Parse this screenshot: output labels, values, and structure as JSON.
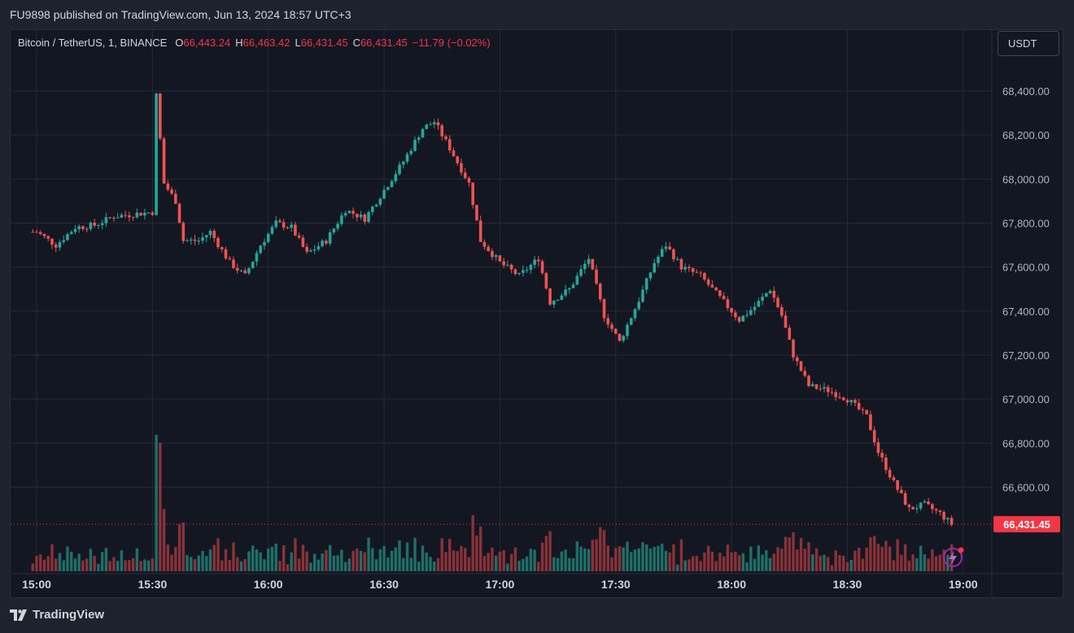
{
  "header": {
    "publish_info": "FU9898 published on TradingView.com, Jun 13, 2024 18:57 UTC+3"
  },
  "legend": {
    "symbol": "Bitcoin / TetherUS, 1, BINANCE",
    "o_label": "O",
    "o_value": "66,443.24",
    "h_label": "H",
    "h_value": "66,463.42",
    "l_label": "L",
    "l_value": "66,431.45",
    "c_label": "C",
    "c_value": "66,431.45",
    "change": "−11.79 (−0.02%)"
  },
  "currency_button": "USDT",
  "last_price_label": "66,431.45",
  "footer": {
    "brand": "TradingView"
  },
  "colors": {
    "up": "#26a69a",
    "down": "#ef5350",
    "up_volume": "#1f6f68",
    "down_volume": "#8a3238",
    "grid": "#262a35",
    "background": "#131722"
  },
  "icons": {
    "replay": "lightning-icon"
  },
  "chart_data": {
    "type": "candlestick",
    "title": "",
    "xlabel": "",
    "ylabel": "",
    "x_ticks": [
      "15:00",
      "15:30",
      "16:00",
      "16:30",
      "17:00",
      "17:30",
      "18:00",
      "18:30",
      "19:00"
    ],
    "y_ticks": [
      "66,600.00",
      "66,800.00",
      "67,000.00",
      "67,200.00",
      "67,400.00",
      "67,600.00",
      "67,800.00",
      "68,000.00",
      "68,200.00",
      "68,400.00"
    ],
    "ylim": [
      66360,
      68680
    ],
    "time_range": [
      "14:59",
      "18:57"
    ],
    "price_path_approx": [
      [
        "15:00",
        67760
      ],
      [
        "15:05",
        67700
      ],
      [
        "15:10",
        67780
      ],
      [
        "15:15",
        67790
      ],
      [
        "15:20",
        67830
      ],
      [
        "15:25",
        67840
      ],
      [
        "15:30",
        67850
      ],
      [
        "15:31",
        68380
      ],
      [
        "15:33",
        67980
      ],
      [
        "15:36",
        67900
      ],
      [
        "15:38",
        67720
      ],
      [
        "15:42",
        67720
      ],
      [
        "15:45",
        67760
      ],
      [
        "15:50",
        67620
      ],
      [
        "15:54",
        67560
      ],
      [
        "15:58",
        67700
      ],
      [
        "16:02",
        67800
      ],
      [
        "16:06",
        67780
      ],
      [
        "16:10",
        67660
      ],
      [
        "16:15",
        67720
      ],
      [
        "16:20",
        67860
      ],
      [
        "16:25",
        67820
      ],
      [
        "16:30",
        67950
      ],
      [
        "16:35",
        68080
      ],
      [
        "16:40",
        68230
      ],
      [
        "16:43",
        68260
      ],
      [
        "16:47",
        68140
      ],
      [
        "16:52",
        67980
      ],
      [
        "16:55",
        67720
      ],
      [
        "17:00",
        67620
      ],
      [
        "17:05",
        67560
      ],
      [
        "17:10",
        67640
      ],
      [
        "17:13",
        67440
      ],
      [
        "17:18",
        67500
      ],
      [
        "17:23",
        67640
      ],
      [
        "17:27",
        67380
      ],
      [
        "17:31",
        67260
      ],
      [
        "17:36",
        67450
      ],
      [
        "17:40",
        67620
      ],
      [
        "17:43",
        67700
      ],
      [
        "17:47",
        67600
      ],
      [
        "17:52",
        67560
      ],
      [
        "17:57",
        67460
      ],
      [
        "18:02",
        67360
      ],
      [
        "18:06",
        67420
      ],
      [
        "18:10",
        67500
      ],
      [
        "18:13",
        67380
      ],
      [
        "18:16",
        67200
      ],
      [
        "18:20",
        67060
      ],
      [
        "18:25",
        67040
      ],
      [
        "18:30",
        67000
      ],
      [
        "18:35",
        66920
      ],
      [
        "18:38",
        66760
      ],
      [
        "18:42",
        66620
      ],
      [
        "18:46",
        66500
      ],
      [
        "18:50",
        66520
      ],
      [
        "18:54",
        66480
      ],
      [
        "18:57",
        66431.45
      ]
    ],
    "last_price": 66431.45
  }
}
